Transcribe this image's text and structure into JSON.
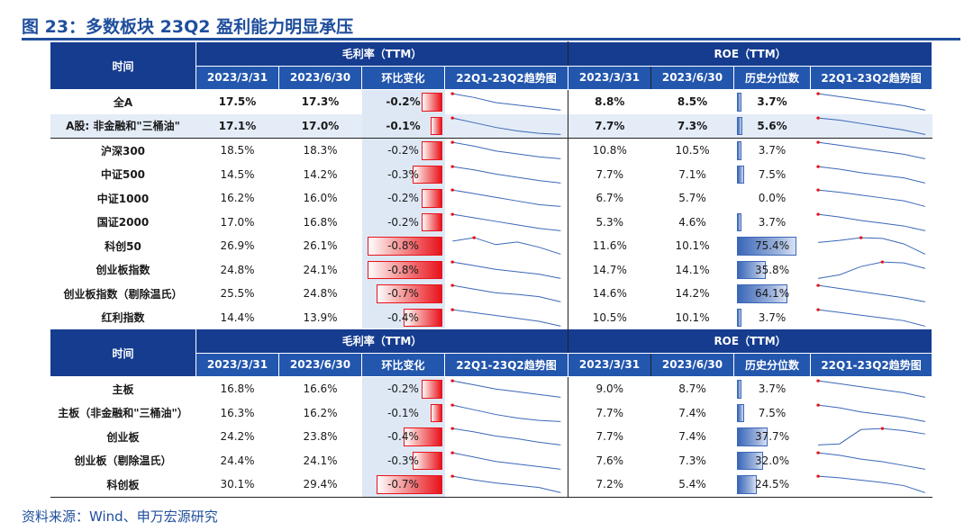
{
  "title": "图 23：多数板块 23Q2 盈利能力明显承压",
  "source": "资料来源：Wind、申万宏源研究",
  "colors": {
    "brand": "#1f4e9c",
    "header_dark": "#153c8f",
    "header_light": "#2356ad",
    "neg_bar": "#e8121b",
    "pct_bar": "#3b67b8",
    "spark": "#3b67b8",
    "spark_point": "#e8121b"
  },
  "tables": [
    {
      "corner_label": "时间",
      "group_gross": "毛利率（TTM）",
      "group_roe": "ROE（TTM）",
      "cols": [
        "2023/3/31",
        "2023/6/30",
        "环比变化",
        "22Q1-23Q2趋势图",
        "2023/3/31",
        "2023/6/30",
        "历史分位数",
        "22Q1-23Q2趋势图"
      ],
      "rows": [
        {
          "name": "全A",
          "gm_q1": "17.5%",
          "gm_q2": "17.3%",
          "gm_chg": "-0.2%",
          "chg_val": -0.2,
          "gm_trend": [
            18.6,
            18.3,
            17.9,
            17.7,
            17.5,
            17.3
          ],
          "roe_q1": "8.8%",
          "roe_q2": "8.5%",
          "pctile": "3.7%",
          "pct_val": 3.7,
          "roe_trend": [
            9.6,
            9.4,
            9.2,
            9.0,
            8.8,
            8.5
          ]
        },
        {
          "name": "A股: 非金融和\"三桶油\"",
          "gm_q1": "17.1%",
          "gm_q2": "17.0%",
          "gm_chg": "-0.1%",
          "chg_val": -0.1,
          "gm_trend": [
            18.4,
            18.0,
            17.6,
            17.3,
            17.1,
            17.0
          ],
          "roe_q1": "7.7%",
          "roe_q2": "7.3%",
          "pctile": "5.6%",
          "pct_val": 5.6,
          "roe_trend": [
            8.8,
            8.6,
            8.3,
            8.0,
            7.7,
            7.3
          ]
        },
        {
          "name": "沪深300",
          "gm_q1": "18.5%",
          "gm_q2": "18.3%",
          "gm_chg": "-0.2%",
          "chg_val": -0.2,
          "gm_trend": [
            20.0,
            19.6,
            19.1,
            18.8,
            18.5,
            18.3
          ],
          "roe_q1": "10.8%",
          "roe_q2": "10.5%",
          "pctile": "3.7%",
          "pct_val": 3.7,
          "roe_trend": [
            11.6,
            11.4,
            11.2,
            11.0,
            10.8,
            10.5
          ]
        },
        {
          "name": "中证500",
          "gm_q1": "14.5%",
          "gm_q2": "14.2%",
          "gm_chg": "-0.3%",
          "chg_val": -0.3,
          "gm_trend": [
            16.2,
            15.8,
            15.3,
            14.9,
            14.5,
            14.2
          ],
          "roe_q1": "7.7%",
          "roe_q2": "7.1%",
          "pctile": "7.5%",
          "pct_val": 7.5,
          "roe_trend": [
            9.0,
            8.7,
            8.3,
            8.0,
            7.7,
            7.1
          ]
        },
        {
          "name": "中证1000",
          "gm_q1": "16.2%",
          "gm_q2": "16.0%",
          "gm_chg": "-0.2%",
          "chg_val": -0.2,
          "gm_trend": [
            17.8,
            17.4,
            17.0,
            16.6,
            16.2,
            16.0
          ],
          "roe_q1": "6.7%",
          "roe_q2": "5.7%",
          "pctile": "0.0%",
          "pct_val": 0.0,
          "roe_trend": [
            8.6,
            8.2,
            7.7,
            7.2,
            6.7,
            5.7
          ]
        },
        {
          "name": "国证2000",
          "gm_q1": "17.0%",
          "gm_q2": "16.8%",
          "gm_chg": "-0.2%",
          "chg_val": -0.2,
          "gm_trend": [
            18.2,
            17.9,
            17.6,
            17.3,
            17.0,
            16.8
          ],
          "roe_q1": "5.3%",
          "roe_q2": "4.6%",
          "pctile": "3.7%",
          "pct_val": 3.7,
          "roe_trend": [
            7.0,
            6.6,
            6.1,
            5.7,
            5.3,
            4.6
          ]
        },
        {
          "name": "科创50",
          "gm_q1": "26.9%",
          "gm_q2": "26.1%",
          "gm_chg": "-0.8%",
          "chg_val": -0.8,
          "gm_trend": [
            27.6,
            28.0,
            27.2,
            27.5,
            26.9,
            26.1
          ],
          "roe_q1": "11.6%",
          "roe_q2": "10.1%",
          "pctile": "75.4%",
          "pct_val": 75.4,
          "roe_trend": [
            11.8,
            12.1,
            12.5,
            12.4,
            11.6,
            10.1
          ]
        },
        {
          "name": "创业板指数",
          "gm_q1": "24.8%",
          "gm_q2": "24.1%",
          "gm_chg": "-0.8%",
          "chg_val": -0.8,
          "gm_trend": [
            26.8,
            26.2,
            25.6,
            25.2,
            24.8,
            24.1
          ],
          "roe_q1": "14.7%",
          "roe_q2": "14.1%",
          "pctile": "35.8%",
          "pct_val": 35.8,
          "roe_trend": [
            13.0,
            13.4,
            14.3,
            14.8,
            14.7,
            14.1
          ]
        },
        {
          "name": "创业板指数（剔除温氏）",
          "gm_q1": "25.5%",
          "gm_q2": "24.8%",
          "gm_chg": "-0.7%",
          "chg_val": -0.7,
          "gm_trend": [
            27.0,
            26.5,
            26.0,
            25.8,
            25.5,
            24.8
          ],
          "roe_q1": "14.6%",
          "roe_q2": "14.2%",
          "pctile": "64.1%",
          "pct_val": 64.1,
          "roe_trend": [
            15.8,
            15.5,
            15.2,
            14.9,
            14.6,
            14.2
          ]
        },
        {
          "name": "红利指数",
          "gm_q1": "14.4%",
          "gm_q2": "13.9%",
          "gm_chg": "-0.4%",
          "chg_val": -0.4,
          "gm_trend": [
            15.6,
            15.3,
            15.0,
            14.7,
            14.4,
            13.9
          ],
          "roe_q1": "10.5%",
          "roe_q2": "10.1%",
          "pctile": "3.7%",
          "pct_val": 3.7,
          "roe_trend": [
            11.3,
            11.1,
            10.9,
            10.7,
            10.5,
            10.1
          ]
        }
      ]
    },
    {
      "corner_label": "时间",
      "group_gross": "毛利率（TTM）",
      "group_roe": "ROE（TTM）",
      "cols": [
        "2023/3/31",
        "2023/6/30",
        "环比变化",
        "22Q1-23Q2趋势图",
        "2023/3/31",
        "2023/6/30",
        "历史分位数",
        "22Q1-23Q2趋势图"
      ],
      "rows": [
        {
          "name": "主板",
          "gm_q1": "16.8%",
          "gm_q2": "16.6%",
          "gm_chg": "-0.2%",
          "chg_val": -0.2,
          "gm_trend": [
            17.8,
            17.5,
            17.2,
            17.0,
            16.8,
            16.6
          ],
          "roe_q1": "9.0%",
          "roe_q2": "8.7%",
          "pctile": "3.7%",
          "pct_val": 3.7,
          "roe_trend": [
            9.8,
            9.6,
            9.4,
            9.2,
            9.0,
            8.7
          ]
        },
        {
          "name": "主板（非金融和\"三桶油\"）",
          "gm_q1": "16.3%",
          "gm_q2": "16.2%",
          "gm_chg": "-0.1%",
          "chg_val": -0.1,
          "gm_trend": [
            17.6,
            17.2,
            16.8,
            16.5,
            16.3,
            16.2
          ],
          "roe_q1": "7.7%",
          "roe_q2": "7.4%",
          "pctile": "7.5%",
          "pct_val": 7.5,
          "roe_trend": [
            8.6,
            8.4,
            8.1,
            7.9,
            7.7,
            7.4
          ]
        },
        {
          "name": "创业板",
          "gm_q1": "24.2%",
          "gm_q2": "23.8%",
          "gm_chg": "-0.4%",
          "chg_val": -0.4,
          "gm_trend": [
            26.2,
            25.7,
            25.1,
            24.7,
            24.2,
            23.8
          ],
          "roe_q1": "7.7%",
          "roe_q2": "7.4%",
          "pctile": "37.7%",
          "pct_val": 37.7,
          "roe_trend": [
            6.4,
            6.5,
            7.8,
            7.9,
            7.7,
            7.4
          ]
        },
        {
          "name": "创业板（剔除温氏）",
          "gm_q1": "24.4%",
          "gm_q2": "24.1%",
          "gm_chg": "-0.3%",
          "chg_val": -0.3,
          "gm_trend": [
            26.0,
            25.5,
            25.0,
            24.7,
            24.4,
            24.1
          ],
          "roe_q1": "7.6%",
          "roe_q2": "7.3%",
          "pctile": "32.0%",
          "pct_val": 32.0,
          "roe_trend": [
            8.6,
            8.4,
            8.1,
            7.9,
            7.6,
            7.3
          ]
        },
        {
          "name": "科创板",
          "gm_q1": "30.1%",
          "gm_q2": "29.4%",
          "gm_chg": "-0.7%",
          "chg_val": -0.7,
          "gm_trend": [
            31.6,
            31.1,
            30.7,
            30.4,
            30.1,
            29.4
          ],
          "roe_q1": "7.2%",
          "roe_q2": "5.4%",
          "pctile": "24.5%",
          "pct_val": 24.5,
          "roe_trend": [
            9.6,
            9.2,
            8.6,
            8.0,
            7.2,
            5.4
          ]
        }
      ]
    }
  ]
}
